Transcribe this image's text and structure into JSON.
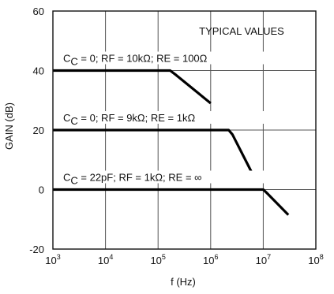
{
  "chart_data": {
    "type": "line",
    "title": "",
    "annotation": "TYPICAL VALUES",
    "xlabel": "f (Hz)",
    "ylabel": "GAIN (dB)",
    "x_scale": "log",
    "xlim": [
      1000,
      100000000
    ],
    "ylim": [
      -20,
      60
    ],
    "grid": true,
    "x_ticks": [
      {
        "value": 1000,
        "base": "10",
        "exp": "3"
      },
      {
        "value": 10000,
        "base": "10",
        "exp": "4"
      },
      {
        "value": 100000,
        "base": "10",
        "exp": "5"
      },
      {
        "value": 1000000,
        "base": "10",
        "exp": "6"
      },
      {
        "value": 10000000,
        "base": "10",
        "exp": "7"
      },
      {
        "value": 100000000,
        "base": "10",
        "exp": "8"
      }
    ],
    "y_ticks": [
      {
        "value": -20,
        "label": "-20"
      },
      {
        "value": 0,
        "label": "0"
      },
      {
        "value": 20,
        "label": "20"
      },
      {
        "value": 40,
        "label": "40"
      },
      {
        "value": 60,
        "label": "60"
      }
    ],
    "line_color": "#000000",
    "series": [
      {
        "label_prefix": "C",
        "label_sub": "C",
        "label_rest": " = 0; RF = 10kΩ; RE = 100Ω",
        "x": [
          1000,
          170000,
          220000,
          1000000
        ],
        "y": [
          40,
          40,
          38.5,
          29
        ]
      },
      {
        "label_prefix": "C",
        "label_sub": "C",
        "label_rest": " = 0; RF = 9kΩ; RE = 1kΩ",
        "x": [
          1000,
          2200000,
          2600000,
          6800000
        ],
        "y": [
          20,
          20,
          18.5,
          4
        ]
      },
      {
        "label_prefix": "C",
        "label_sub": "C",
        "label_rest": " = 22pF; RF = 1kΩ; RE = ∞",
        "x": [
          1000,
          10000000,
          11500000,
          30000000
        ],
        "y": [
          0,
          0,
          -1,
          -8.5
        ]
      }
    ]
  }
}
